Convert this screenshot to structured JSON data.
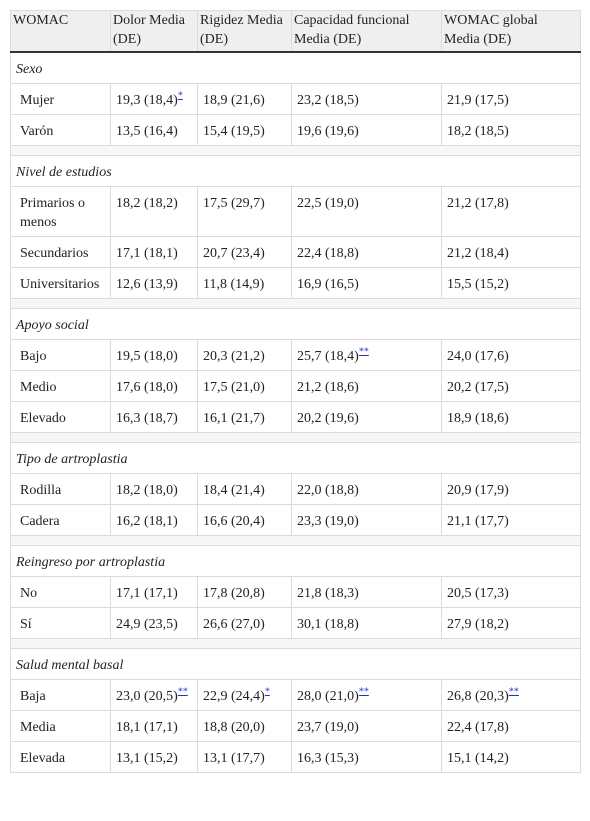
{
  "table": {
    "header": [
      "WOMAC",
      "Dolor Media (DE)",
      "Rigidez Media (DE)",
      "Capacidad funcional Media (DE)",
      "WOMAC global Media (DE)"
    ],
    "sections": [
      {
        "title": "Sexo",
        "rows": [
          {
            "label": "Mujer",
            "cells": [
              {
                "text": "19,3 (18,4)",
                "note": "*"
              },
              "18,9 (21,6)",
              "23,2 (18,5)",
              "21,9 (17,5)"
            ]
          },
          {
            "label": "Varón",
            "cells": [
              "13,5 (16,4)",
              "15,4 (19,5)",
              "19,6 (19,6)",
              "18,2 (18,5)"
            ]
          }
        ]
      },
      {
        "title": "Nivel de estudios",
        "rows": [
          {
            "label": "Primarios o menos",
            "cells": [
              "18,2 (18,2)",
              "17,5 (29,7)",
              "22,5 (19,0)",
              "21,2 (17,8)"
            ]
          },
          {
            "label": "Secundarios",
            "cells": [
              "17,1 (18,1)",
              "20,7 (23,4)",
              "22,4 (18,8)",
              "21,2 (18,4)"
            ]
          },
          {
            "label": "Universitarios",
            "cells": [
              "12,6 (13,9)",
              "11,8 (14,9)",
              "16,9 (16,5)",
              "15,5 (15,2)"
            ]
          }
        ]
      },
      {
        "title": "Apoyo social",
        "rows": [
          {
            "label": "Bajo",
            "cells": [
              "19,5 (18,0)",
              "20,3 (21,2)",
              {
                "text": "25,7 (18,4)",
                "note": "**"
              },
              "24,0 (17,6)"
            ]
          },
          {
            "label": "Medio",
            "cells": [
              "17,6 (18,0)",
              "17,5 (21,0)",
              "21,2 (18,6)",
              "20,2 (17,5)"
            ]
          },
          {
            "label": "Elevado",
            "cells": [
              "16,3 (18,7)",
              "16,1 (21,7)",
              "20,2 (19,6)",
              "18,9 (18,6)"
            ]
          }
        ]
      },
      {
        "title": "Tipo de artroplastia",
        "rows": [
          {
            "label": "Rodilla",
            "cells": [
              "18,2 (18,0)",
              "18,4 (21,4)",
              "22,0 (18,8)",
              "20,9 (17,9)"
            ]
          },
          {
            "label": "Cadera",
            "cells": [
              "16,2 (18,1)",
              "16,6 (20,4)",
              "23,3 (19,0)",
              "21,1 (17,7)"
            ]
          }
        ]
      },
      {
        "title": "Reingreso por artroplastia",
        "rows": [
          {
            "label": "No",
            "cells": [
              "17,1 (17,1)",
              "17,8 (20,8)",
              "21,8 (18,3)",
              "20,5 (17,3)"
            ]
          },
          {
            "label": "Sí",
            "cells": [
              "24,9 (23,5)",
              "26,6 (27,0)",
              "30,1 (18,8)",
              "27,9 (18,2)"
            ]
          }
        ]
      },
      {
        "title": "Salud mental basal",
        "rows": [
          {
            "label": "Baja",
            "cells": [
              {
                "text": "23,0 (20,5)",
                "note": "**"
              },
              {
                "text": "22,9 (24,4)",
                "note": "*"
              },
              {
                "text": "28,0 (21,0)",
                "note": "**"
              },
              {
                "text": "26,8 (20,3)",
                "note": "**"
              }
            ]
          },
          {
            "label": "Media",
            "cells": [
              "18,1 (17,1)",
              "18,8 (20,0)",
              "23,7 (19,0)",
              "22,4 (17,8)"
            ]
          },
          {
            "label": "Elevada",
            "cells": [
              "13,1 (15,2)",
              "13,1 (17,7)",
              "16,3 (15,3)",
              "15,1 (14,2)"
            ]
          }
        ]
      }
    ]
  }
}
